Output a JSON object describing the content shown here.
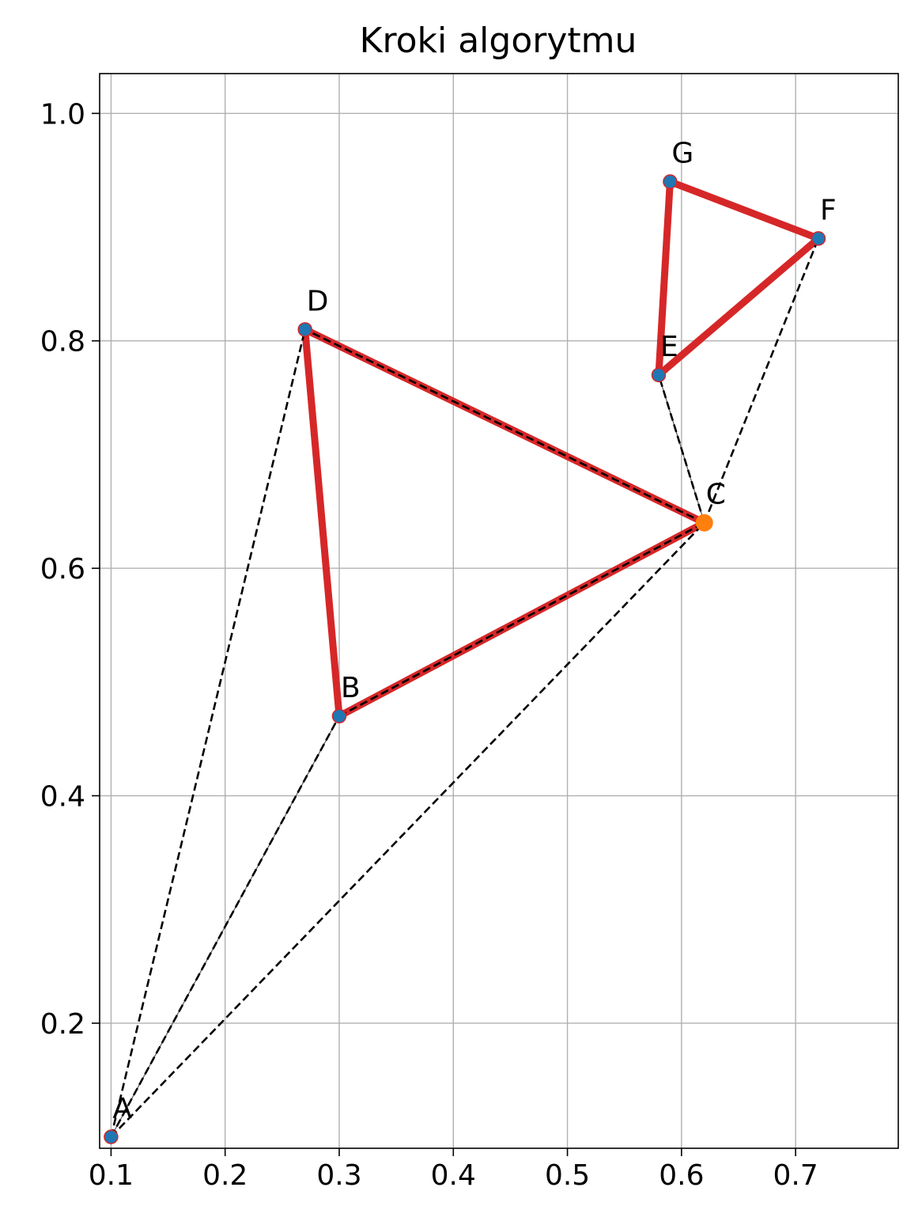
{
  "chart_data": {
    "type": "scatter",
    "title": "Kroki algorytmu",
    "xlabel": "",
    "ylabel": "",
    "xlim": [
      0.09,
      0.79
    ],
    "ylim": [
      0.09,
      1.035
    ],
    "xticks": [
      0.1,
      0.2,
      0.3,
      0.4,
      0.5,
      0.6,
      0.7
    ],
    "xtick_labels": [
      "0.1",
      "0.2",
      "0.3",
      "0.4",
      "0.5",
      "0.6",
      "0.7"
    ],
    "yticks": [
      0.2,
      0.4,
      0.6,
      0.8,
      1.0
    ],
    "ytick_labels": [
      "0.2",
      "0.4",
      "0.6",
      "0.8",
      "1.0"
    ],
    "grid": true,
    "points": [
      {
        "label": "A",
        "x": 0.1,
        "y": 0.1,
        "color": "#1f77b4"
      },
      {
        "label": "B",
        "x": 0.3,
        "y": 0.47,
        "color": "#1f77b4"
      },
      {
        "label": "C",
        "x": 0.62,
        "y": 0.64,
        "color": "#ff7f0e"
      },
      {
        "label": "D",
        "x": 0.27,
        "y": 0.81,
        "color": "#1f77b4"
      },
      {
        "label": "E",
        "x": 0.58,
        "y": 0.77,
        "color": "#1f77b4"
      },
      {
        "label": "F",
        "x": 0.72,
        "y": 0.89,
        "color": "#1f77b4"
      },
      {
        "label": "G",
        "x": 0.59,
        "y": 0.94,
        "color": "#1f77b4"
      }
    ],
    "thick_edges": [
      [
        "D",
        "B"
      ],
      [
        "B",
        "C"
      ],
      [
        "C",
        "D"
      ],
      [
        "G",
        "F"
      ],
      [
        "F",
        "E"
      ],
      [
        "E",
        "G"
      ]
    ],
    "dashed_edges": [
      [
        "A",
        "D"
      ],
      [
        "A",
        "B"
      ],
      [
        "A",
        "C"
      ],
      [
        "B",
        "C"
      ],
      [
        "C",
        "D"
      ],
      [
        "C",
        "E"
      ],
      [
        "C",
        "F"
      ]
    ],
    "thin_edges": [
      [
        "A",
        "B"
      ],
      [
        "C",
        "E"
      ]
    ],
    "colors": {
      "thick_edge": "#d62728",
      "dashed_edge": "#000000",
      "grid": "#b0b0b0",
      "current_point": "#ff7f0e",
      "point": "#1f77b4"
    }
  }
}
